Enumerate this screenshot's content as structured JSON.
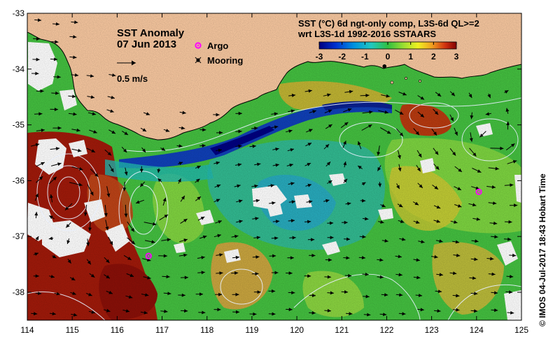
{
  "title": "SST Anomaly",
  "date": "07 Jun 2013",
  "vector_scale_label": "0.5 m/s",
  "legend": {
    "argo_label": "Argo",
    "mooring_label": "Mooring",
    "argo_color": "#ff00ff",
    "mooring_color": "#000000"
  },
  "colorbar": {
    "title_line1": "SST (°C) 6d ngt-only comp, L3S-6d QL>=2",
    "title_line2": "wrt L3S-1d 1992-2016 SSTAARS",
    "ticks": [
      "-3",
      "-2",
      "-1",
      "0",
      "1",
      "2",
      "3"
    ],
    "min": -3,
    "max": 3
  },
  "credit": "© IMOS 04-Jul-2017 18:43 Hobart Time",
  "axes": {
    "x_ticks": [
      "114",
      "115",
      "116",
      "117",
      "118",
      "119",
      "120",
      "121",
      "122",
      "123",
      "124",
      "125"
    ],
    "y_ticks": [
      "-33",
      "-34",
      "-35",
      "-36",
      "-37",
      "-38"
    ],
    "lon_range": [
      114,
      125
    ],
    "lat_range": [
      -38.5,
      -33
    ]
  },
  "colors": {
    "land": "#f8c8a0",
    "no_data": "#ffffff",
    "strong_warm": "#8b1a0a",
    "warm": "#c0501a",
    "mild_warm": "#e8a030",
    "neutral_green": "#40c040",
    "light_green": "#8cd840",
    "cool": "#20b0a0",
    "cold": "#1050c0",
    "very_cold": "#000080"
  },
  "argo_floats": [
    {
      "lon": 116.7,
      "lat": -37.35
    },
    {
      "lon": 124.05,
      "lat": -36.2
    }
  ],
  "moorings": [
    {
      "lon": 121.95,
      "lat": -33.95
    }
  ]
}
